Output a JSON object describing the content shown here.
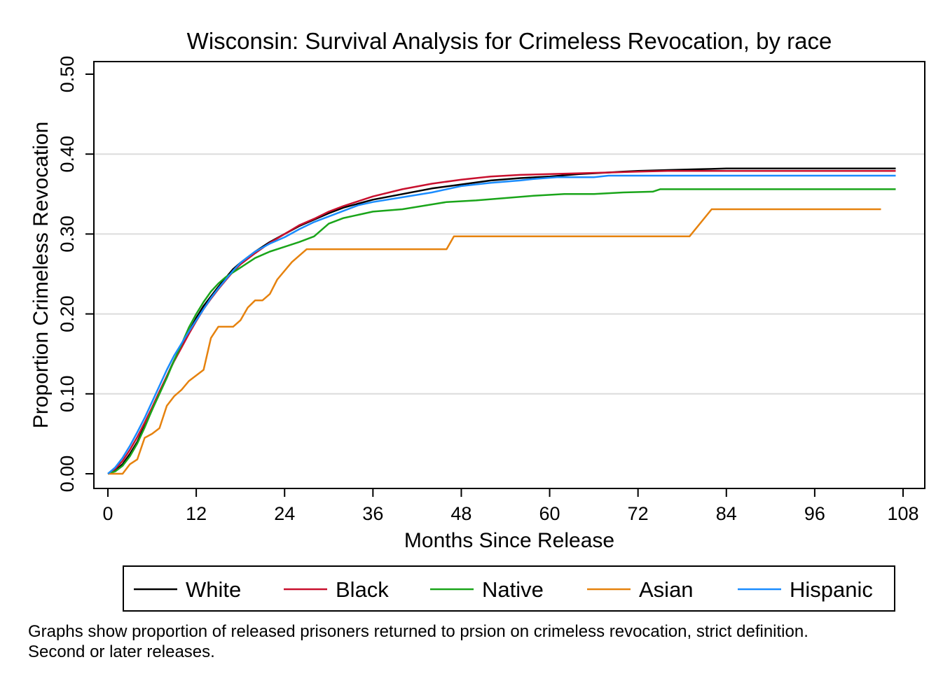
{
  "chart_data": {
    "type": "line",
    "title": "Wisconsin: Survival Analysis for Crimeless Revocation, by race",
    "xlabel": "Months Since Release",
    "ylabel": "Proportion Crimeless Revocation",
    "xlim": [
      0,
      108
    ],
    "ylim": [
      0,
      0.5
    ],
    "xticks": [
      0,
      12,
      24,
      36,
      48,
      60,
      72,
      84,
      96,
      108
    ],
    "xtick_labels": [
      "0",
      "12",
      "24",
      "36",
      "48",
      "60",
      "72",
      "84",
      "96",
      "108"
    ],
    "yticks": [
      0,
      0.1,
      0.2,
      0.3,
      0.4,
      0.5
    ],
    "ytick_labels": [
      "0.00",
      "0.10",
      "0.20",
      "0.30",
      "0.40",
      "0.50"
    ],
    "grid": "horizontal",
    "legend_position": "bottom",
    "series": [
      {
        "name": "White",
        "color": "#000000",
        "x": [
          0,
          1,
          2,
          3,
          4,
          5,
          6,
          7,
          8,
          9,
          10,
          11,
          12,
          13,
          14,
          15,
          16,
          17,
          18,
          20,
          22,
          24,
          26,
          28,
          30,
          32,
          34,
          36,
          40,
          44,
          48,
          52,
          56,
          60,
          64,
          68,
          70,
          72,
          76,
          80,
          84,
          90,
          100,
          107
        ],
        "y": [
          0,
          0.004,
          0.012,
          0.025,
          0.04,
          0.06,
          0.08,
          0.102,
          0.122,
          0.142,
          0.16,
          0.178,
          0.195,
          0.21,
          0.222,
          0.234,
          0.245,
          0.256,
          0.264,
          0.278,
          0.29,
          0.3,
          0.31,
          0.318,
          0.326,
          0.333,
          0.338,
          0.343,
          0.35,
          0.357,
          0.362,
          0.367,
          0.37,
          0.372,
          0.375,
          0.377,
          0.378,
          0.379,
          0.38,
          0.381,
          0.382,
          0.382,
          0.382,
          0.382
        ]
      },
      {
        "name": "Black",
        "color": "#c8102e",
        "x": [
          0,
          1,
          2,
          3,
          4,
          5,
          6,
          7,
          8,
          9,
          10,
          11,
          12,
          13,
          14,
          15,
          16,
          17,
          18,
          20,
          22,
          24,
          26,
          28,
          30,
          32,
          34,
          36,
          40,
          44,
          48,
          52,
          56,
          60,
          64,
          68,
          72,
          76,
          80,
          90,
          100,
          107
        ],
        "y": [
          0,
          0.006,
          0.016,
          0.03,
          0.046,
          0.064,
          0.083,
          0.103,
          0.122,
          0.141,
          0.158,
          0.175,
          0.191,
          0.206,
          0.219,
          0.231,
          0.242,
          0.253,
          0.262,
          0.276,
          0.289,
          0.3,
          0.311,
          0.319,
          0.328,
          0.335,
          0.341,
          0.347,
          0.356,
          0.363,
          0.368,
          0.372,
          0.374,
          0.375,
          0.376,
          0.377,
          0.378,
          0.379,
          0.379,
          0.379,
          0.379,
          0.379
        ]
      },
      {
        "name": "Native",
        "color": "#1aa51a",
        "x": [
          0,
          1,
          2,
          3,
          4,
          5,
          6,
          7,
          8,
          9,
          10,
          11,
          12,
          13,
          14,
          15,
          16,
          17,
          18,
          20,
          22,
          24,
          26,
          28,
          30,
          32,
          34,
          36,
          40,
          44,
          46,
          50,
          54,
          58,
          62,
          66,
          70,
          74,
          75,
          80,
          90,
          100,
          107
        ],
        "y": [
          0,
          0.003,
          0.01,
          0.022,
          0.038,
          0.058,
          0.08,
          0.1,
          0.12,
          0.142,
          0.162,
          0.183,
          0.2,
          0.215,
          0.228,
          0.238,
          0.246,
          0.252,
          0.258,
          0.27,
          0.278,
          0.284,
          0.29,
          0.297,
          0.313,
          0.32,
          0.324,
          0.328,
          0.331,
          0.337,
          0.34,
          0.342,
          0.345,
          0.348,
          0.35,
          0.35,
          0.352,
          0.353,
          0.356,
          0.356,
          0.356,
          0.356,
          0.356
        ]
      },
      {
        "name": "Asian",
        "color": "#e6820e",
        "x": [
          0,
          2,
          3,
          4,
          5,
          6,
          7,
          8,
          9,
          10,
          11,
          12,
          13,
          14,
          15,
          16,
          17,
          18,
          19,
          20,
          21,
          22,
          23,
          25,
          27,
          46,
          47,
          60,
          70,
          79,
          82,
          90,
          100,
          105
        ],
        "y": [
          0,
          0,
          0.012,
          0.018,
          0.045,
          0.05,
          0.057,
          0.085,
          0.097,
          0.105,
          0.116,
          0.123,
          0.13,
          0.17,
          0.184,
          0.184,
          0.184,
          0.192,
          0.208,
          0.217,
          0.217,
          0.225,
          0.243,
          0.265,
          0.281,
          0.281,
          0.297,
          0.297,
          0.297,
          0.297,
          0.331,
          0.331,
          0.331,
          0.331
        ]
      },
      {
        "name": "Hispanic",
        "color": "#1a8cff",
        "x": [
          0,
          1,
          2,
          3,
          4,
          5,
          6,
          7,
          8,
          9,
          10,
          11,
          12,
          13,
          14,
          15,
          16,
          17,
          18,
          20,
          22,
          24,
          26,
          28,
          30,
          32,
          34,
          36,
          40,
          44,
          48,
          52,
          56,
          58,
          61,
          66,
          68,
          75,
          85,
          95,
          107
        ],
        "y": [
          0,
          0.008,
          0.02,
          0.035,
          0.052,
          0.07,
          0.09,
          0.11,
          0.13,
          0.148,
          0.163,
          0.178,
          0.192,
          0.206,
          0.22,
          0.232,
          0.243,
          0.254,
          0.264,
          0.278,
          0.288,
          0.296,
          0.306,
          0.315,
          0.322,
          0.329,
          0.336,
          0.34,
          0.346,
          0.352,
          0.36,
          0.364,
          0.367,
          0.369,
          0.371,
          0.371,
          0.373,
          0.373,
          0.373,
          0.373,
          0.373
        ]
      }
    ]
  },
  "note": {
    "line1": "Graphs show proportion of released prisoners returned to prsion on crimeless revocation, strict definition.",
    "line2": "Second or later releases."
  }
}
